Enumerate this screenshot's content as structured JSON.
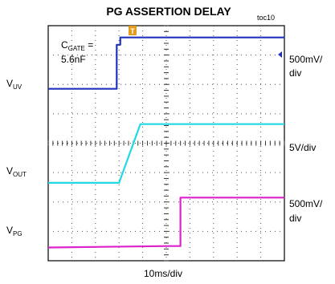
{
  "chart_data": {
    "type": "line",
    "title": "PG ASSERTION DELAY",
    "figure_id": "toc10",
    "annotation": {
      "line1": "C",
      "sub": "GATE",
      "line2": " =",
      "line3": "5.6nF"
    },
    "time_scale": "10ms/div",
    "trigger_marker": "T",
    "x_divisions": 10,
    "y_divisions": 8,
    "channel_scales": [
      {
        "text": "500mV/",
        "text2": "div"
      },
      {
        "text": "5V/div",
        "text2": ""
      },
      {
        "text": "500mV/",
        "text2": "div"
      }
    ],
    "series": [
      {
        "name": "V",
        "sub": "UV",
        "color": "#2233bb",
        "points": [
          [
            0,
            5.85
          ],
          [
            2.9,
            5.85
          ],
          [
            2.9,
            7.35
          ],
          [
            3.05,
            7.35
          ],
          [
            3.05,
            7.6
          ],
          [
            10,
            7.6
          ]
        ]
      },
      {
        "name": "V",
        "sub": "OUT",
        "color": "#22d8e6",
        "points": [
          [
            0,
            2.65
          ],
          [
            3.0,
            2.65
          ],
          [
            3.9,
            4.65
          ],
          [
            10,
            4.65
          ]
        ]
      },
      {
        "name": "V",
        "sub": "PG",
        "color": "#dd22cc",
        "points": [
          [
            0,
            0.45
          ],
          [
            5.1,
            0.5
          ],
          [
            5.6,
            0.5
          ],
          [
            5.6,
            2.15
          ],
          [
            10,
            2.15
          ]
        ]
      }
    ]
  }
}
